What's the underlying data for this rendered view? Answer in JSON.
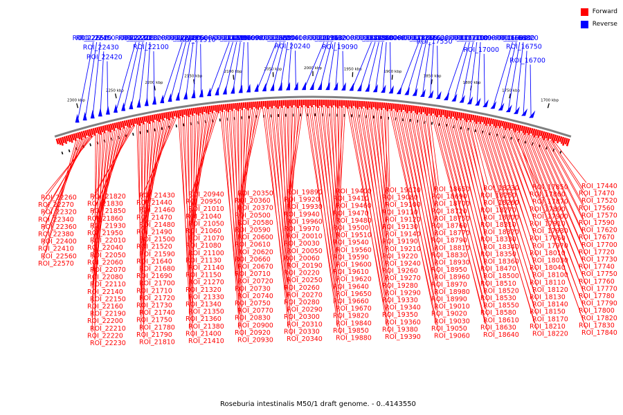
{
  "legend": [
    {
      "label": "Forward",
      "color": "#ff0000"
    },
    {
      "label": "Reverse",
      "color": "#0000ff"
    }
  ],
  "caption": "Roseburia intestinalis M50/1 draft genome. - 0..4143550",
  "colors": {
    "forward": "#ff0000",
    "reverse": "#0000ff",
    "backbone": "#7f7f7f",
    "tick": "#000000"
  },
  "kbp_ticks": [
    "1700 kbp",
    "1750 kbp",
    "1800 kbp",
    "1850 kbp",
    "1900 kbp",
    "1950 kbp",
    "2000 kbp",
    "2050 kbp",
    "2100 kbp",
    "2150 kbp",
    "2200 kbp",
    "2250 kbp",
    "2300 kbp"
  ],
  "reverse_rois": [
    "ROI_16700",
    "ROI_16750",
    "ROI_16820",
    "ROI_16830",
    "ROI_16930",
    "ROI_16960",
    "ROI_17000",
    "ROI_17090",
    "ROI_17180",
    "ROI_17190",
    "ROI_17210",
    "ROI_17510",
    "ROI_17550",
    "ROI_17630",
    "ROI_17650",
    "ROI_17660",
    "ROI_17810",
    "ROI_17880",
    "ROI_18060",
    "ROI_18070",
    "ROI_18400",
    "ROI_18560",
    "ROI_18730",
    "ROI_18740",
    "ROI_19090",
    "ROI_19200",
    "ROI_19320",
    "ROI_19430",
    "ROI_20150",
    "ROI_20230",
    "ROI_20240",
    "ROI_20410",
    "ROI_20560",
    "ROI_20570",
    "ROI_20630",
    "ROI_20680",
    "ROI_20690",
    "ROI_20700",
    "ROI_20760",
    "ROI_20790",
    "ROI_21290",
    "ROI_21450",
    "ROI_21510",
    "ROI_21580",
    "ROI_21760",
    "ROI_21800",
    "ROI_22000",
    "ROI_22090",
    "ROI_22100",
    "ROI_22120",
    "ROI_22130",
    "ROI_22180",
    "ROI_22300",
    "ROI_22370",
    "ROI_22420",
    "ROI_22430",
    "ROI_22450",
    "ROI_22620",
    "ROI_22650"
  ],
  "forward_rois": [
    "ROI_17440",
    "ROI_17470",
    "ROI_17520",
    "ROI_17560",
    "ROI_17570",
    "ROI_17590",
    "ROI_17620",
    "ROI_17670",
    "ROI_17700",
    "ROI_17720",
    "ROI_17730",
    "ROI_17740",
    "ROI_17750",
    "ROI_17760",
    "ROI_17770",
    "ROI_17780",
    "ROI_17790",
    "ROI_17800",
    "ROI_17820",
    "ROI_17830",
    "ROI_17840",
    "ROI_17850",
    "ROI_17860",
    "ROI_17870",
    "ROI_17890",
    "ROI_17900",
    "ROI_17910",
    "ROI_17930",
    "ROI_17950",
    "ROI_17970",
    "ROI_18010",
    "ROI_18030",
    "ROI_18040",
    "ROI_18100",
    "ROI_18110",
    "ROI_18120",
    "ROI_18130",
    "ROI_18140",
    "ROI_18150",
    "ROI_18170",
    "ROI_18210",
    "ROI_18220",
    "ROI_18230",
    "ROI_18250",
    "ROI_18260",
    "ROI_18270",
    "ROI_18300",
    "ROI_18310",
    "ROI_18320",
    "ROI_18330",
    "ROI_18340",
    "ROI_18350",
    "ROI_18360",
    "ROI_18470",
    "ROI_18500",
    "ROI_18510",
    "ROI_18520",
    "ROI_18530",
    "ROI_18550",
    "ROI_18580",
    "ROI_18610",
    "ROI_18630",
    "ROI_18640",
    "ROI_18650",
    "ROI_18690",
    "ROI_18700",
    "ROI_18720",
    "ROI_18750",
    "ROI_18760",
    "ROI_18770",
    "ROI_18790",
    "ROI_18810",
    "ROI_18830",
    "ROI_18930",
    "ROI_18950",
    "ROI_18960",
    "ROI_18970",
    "ROI_18980",
    "ROI_18990",
    "ROI_19010",
    "ROI_19020",
    "ROI_19030",
    "ROI_19050",
    "ROI_19060",
    "ROI_19070",
    "ROI_19080",
    "ROI_19100",
    "ROI_19110",
    "ROI_19120",
    "ROI_19130",
    "ROI_19140",
    "ROI_19190",
    "ROI_19210",
    "ROI_19220",
    "ROI_19240",
    "ROI_19260",
    "ROI_19270",
    "ROI_19280",
    "ROI_19290",
    "ROI_19330",
    "ROI_19340",
    "ROI_19350",
    "ROI_19360",
    "ROI_19380",
    "ROI_19390",
    "ROI_19400",
    "ROI_19410",
    "ROI_19460",
    "ROI_19470",
    "ROI_19480",
    "ROI_19500",
    "ROI_19510",
    "ROI_19540",
    "ROI_19560",
    "ROI_19590",
    "ROI_19600",
    "ROI_19610",
    "ROI_19620",
    "ROI_19640",
    "ROI_19650",
    "ROI_19660",
    "ROI_19670",
    "ROI_19820",
    "ROI_19840",
    "ROI_19850",
    "ROI_19880",
    "ROI_19890",
    "ROI_19920",
    "ROI_19930",
    "ROI_19940",
    "ROI_19960",
    "ROI_19970",
    "ROI_20010",
    "ROI_20030",
    "ROI_20050",
    "ROI_20060",
    "ROI_20190",
    "ROI_20220",
    "ROI_20250",
    "ROI_20260",
    "ROI_20270",
    "ROI_20280",
    "ROI_20290",
    "ROI_20300",
    "ROI_20310",
    "ROI_20330",
    "ROI_20340",
    "ROI_20350",
    "ROI_20360",
    "ROI_20370",
    "ROI_20500",
    "ROI_20580",
    "ROI_20590",
    "ROI_20600",
    "ROI_20610",
    "ROI_20620",
    "ROI_20660",
    "ROI_20670",
    "ROI_20710",
    "ROI_20720",
    "ROI_20730",
    "ROI_20740",
    "ROI_20750",
    "ROI_20770",
    "ROI_20830",
    "ROI_20900",
    "ROI_20920",
    "ROI_20930",
    "ROI_20940",
    "ROI_20950",
    "ROI_21010",
    "ROI_21040",
    "ROI_21050",
    "ROI_21060",
    "ROI_21070",
    "ROI_21080",
    "ROI_21100",
    "ROI_21130",
    "ROI_21140",
    "ROI_21150",
    "ROI_21270",
    "ROI_21320",
    "ROI_21330",
    "ROI_21340",
    "ROI_21350",
    "ROI_21360",
    "ROI_21380",
    "ROI_21400",
    "ROI_21410",
    "ROI_21430",
    "ROI_21440",
    "ROI_21460",
    "ROI_21470",
    "ROI_21480",
    "ROI_21490",
    "ROI_21500",
    "ROI_21520",
    "ROI_21590",
    "ROI_21640",
    "ROI_21680",
    "ROI_21690",
    "ROI_21700",
    "ROI_21710",
    "ROI_21720",
    "ROI_21730",
    "ROI_21740",
    "ROI_21750",
    "ROI_21780",
    "ROI_21790",
    "ROI_21810",
    "ROI_21820",
    "ROI_21830",
    "ROI_21850",
    "ROI_21860",
    "ROI_21930",
    "ROI_21950",
    "ROI_22010",
    "ROI_22040",
    "ROI_22050",
    "ROI_22060",
    "ROI_22070",
    "ROI_22080",
    "ROI_22110",
    "ROI_22140",
    "ROI_22150",
    "ROI_22160",
    "ROI_22190",
    "ROI_22200",
    "ROI_22210",
    "ROI_22220",
    "ROI_22230",
    "ROI_22260",
    "ROI_22270",
    "ROI_22320",
    "ROI_22340",
    "ROI_22360",
    "ROI_22380",
    "ROI_22400",
    "ROI_22410",
    "ROI_22560",
    "ROI_22570"
  ]
}
